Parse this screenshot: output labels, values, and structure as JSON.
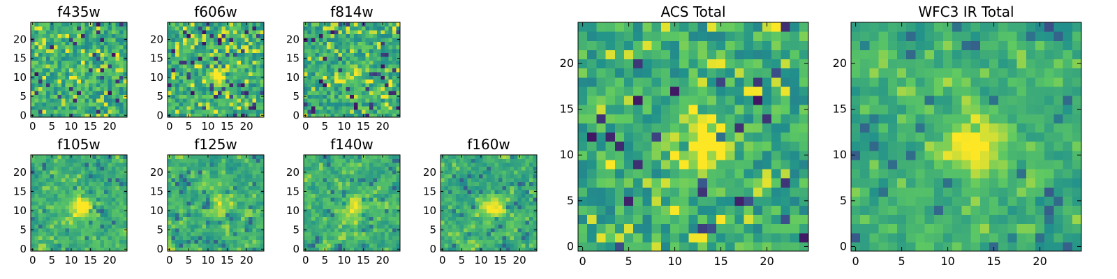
{
  "figure": {
    "background": "#ffffff"
  },
  "colormap": {
    "name": "viridis",
    "stops": [
      "#440154",
      "#3b528b",
      "#21918c",
      "#5ec962",
      "#fde725"
    ]
  },
  "chart_data": [
    {
      "type": "heatmap",
      "title": "f435w",
      "grid": [
        25,
        25
      ],
      "xlim": [
        0,
        24
      ],
      "ylim": [
        0,
        24
      ],
      "xticks": [
        0,
        5,
        10,
        15,
        20
      ],
      "yticks": [
        0,
        5,
        10,
        15,
        20
      ],
      "seed": 11,
      "values_note_source": "noise",
      "center_boost": 0.05,
      "smooth": 0
    },
    {
      "type": "heatmap",
      "title": "f606w",
      "grid": [
        25,
        25
      ],
      "xlim": [
        0,
        24
      ],
      "ylim": [
        0,
        24
      ],
      "xticks": [
        0,
        5,
        10,
        15,
        20
      ],
      "yticks": [
        0,
        5,
        10,
        15,
        20
      ],
      "seed": 23,
      "center_boost": 0.35,
      "smooth": 0
    },
    {
      "type": "heatmap",
      "title": "f814w",
      "grid": [
        25,
        25
      ],
      "xlim": [
        0,
        24
      ],
      "ylim": [
        0,
        24
      ],
      "xticks": [
        0,
        5,
        10,
        15,
        20
      ],
      "yticks": [
        0,
        5,
        10,
        15,
        20
      ],
      "seed": 37,
      "center_boost": 0.2,
      "smooth": 0
    },
    {
      "type": "heatmap",
      "title": "f105w",
      "grid": [
        25,
        25
      ],
      "xlim": [
        0,
        24
      ],
      "ylim": [
        0,
        24
      ],
      "xticks": [
        0,
        5,
        10,
        15,
        20
      ],
      "yticks": [
        0,
        5,
        10,
        15,
        20
      ],
      "seed": 41,
      "center_boost": 0.45,
      "smooth": 1
    },
    {
      "type": "heatmap",
      "title": "f125w",
      "grid": [
        25,
        25
      ],
      "xlim": [
        0,
        24
      ],
      "ylim": [
        0,
        24
      ],
      "xticks": [
        0,
        5,
        10,
        15,
        20
      ],
      "yticks": [
        0,
        5,
        10,
        15,
        20
      ],
      "seed": 53,
      "center_boost": 0.25,
      "smooth": 1
    },
    {
      "type": "heatmap",
      "title": "f140w",
      "grid": [
        25,
        25
      ],
      "xlim": [
        0,
        24
      ],
      "ylim": [
        0,
        24
      ],
      "xticks": [
        0,
        5,
        10,
        15,
        20
      ],
      "yticks": [
        0,
        5,
        10,
        15,
        20
      ],
      "seed": 67,
      "center_boost": 0.35,
      "smooth": 1
    },
    {
      "type": "heatmap",
      "title": "f160w",
      "grid": [
        25,
        25
      ],
      "xlim": [
        0,
        24
      ],
      "ylim": [
        0,
        24
      ],
      "xticks": [
        0,
        5,
        10,
        15,
        20
      ],
      "yticks": [
        0,
        5,
        10,
        15,
        20
      ],
      "seed": 79,
      "center_boost": 0.35,
      "smooth": 1
    },
    {
      "type": "heatmap",
      "title": "ACS Total",
      "grid": [
        25,
        25
      ],
      "xlim": [
        0,
        24
      ],
      "ylim": [
        0,
        24
      ],
      "xticks": [
        0,
        5,
        10,
        15,
        20
      ],
      "yticks": [
        0,
        5,
        10,
        15,
        20
      ],
      "seed": 97,
      "center_boost": 0.45,
      "smooth": 0
    },
    {
      "type": "heatmap",
      "title": "WFC3 IR Total",
      "grid": [
        25,
        25
      ],
      "xlim": [
        0,
        24
      ],
      "ylim": [
        0,
        24
      ],
      "xticks": [
        0,
        5,
        10,
        15,
        20
      ],
      "yticks": [
        0,
        5,
        10,
        15,
        20
      ],
      "seed": 113,
      "center_boost": 0.45,
      "smooth": 1
    }
  ]
}
